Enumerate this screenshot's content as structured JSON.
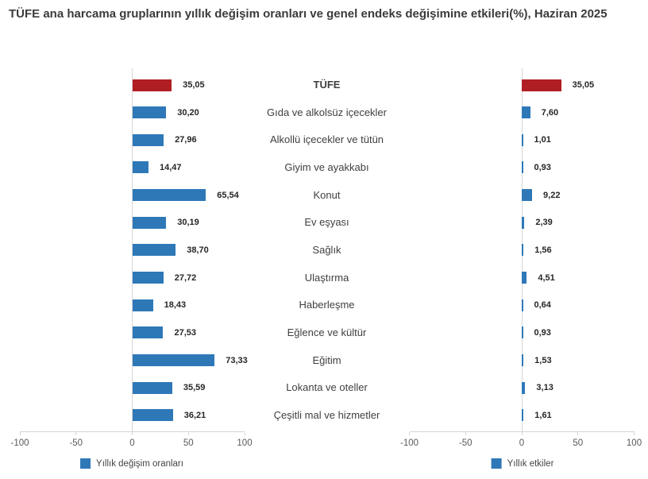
{
  "title": "TÜFE ana harcama gruplarının yıllık değişim oranları ve genel endeks değişimine etkileri(%), Haziran 2025",
  "chart_data": {
    "type": "bar",
    "orientation": "horizontal",
    "title": "TÜFE ana harcama gruplarının yıllık değişim oranları ve genel endeks değişimine etkileri(%), Haziran 2025",
    "categories": [
      "TÜFE",
      "Gıda ve alkolsüz içecekler",
      "Alkollü içecekler ve tütün",
      "Giyim ve ayakkabı",
      "Konut",
      "Ev eşyası",
      "Sağlık",
      "Ulaştırma",
      "Haberleşme",
      "Eğlence ve kültür",
      "Eğitim",
      "Lokanta ve oteller",
      "Çeşitli mal ve hizmetler"
    ],
    "emphasized_category": "TÜFE",
    "series": [
      {
        "name": "Yıllık değişim oranları",
        "values": [
          35.05,
          30.2,
          27.96,
          14.47,
          65.54,
          30.19,
          38.7,
          27.72,
          18.43,
          27.53,
          73.33,
          35.59,
          36.21
        ],
        "labels": [
          "35,05",
          "30,20",
          "27,96",
          "14,47",
          "65,54",
          "30,19",
          "38,70",
          "27,72",
          "18,43",
          "27,53",
          "73,33",
          "35,59",
          "36,21"
        ]
      },
      {
        "name": "Yıllık etkiler",
        "values": [
          35.05,
          7.6,
          1.01,
          0.93,
          9.22,
          2.39,
          1.56,
          4.51,
          0.64,
          0.93,
          1.53,
          3.13,
          1.61
        ],
        "labels": [
          "35,05",
          "7,60",
          "1,01",
          "0,93",
          "9,22",
          "2,39",
          "1,56",
          "4,51",
          "0,64",
          "0,93",
          "1,53",
          "3,13",
          "1,61"
        ]
      }
    ],
    "xlim": [
      -100,
      100
    ],
    "xticks": [
      -100,
      -50,
      0,
      50,
      100
    ],
    "grid": "zero-axis-and-baseline-only",
    "legend_position": "bottom"
  },
  "colors": {
    "bar_blue": "#2e78b8",
    "bar_red": "#b01e23",
    "axis_line": "#d6d6d6",
    "tick_text": "#595959",
    "value_text": "#262626",
    "category_text": "#3f3f3f",
    "title_text": "#3b3b3b"
  }
}
